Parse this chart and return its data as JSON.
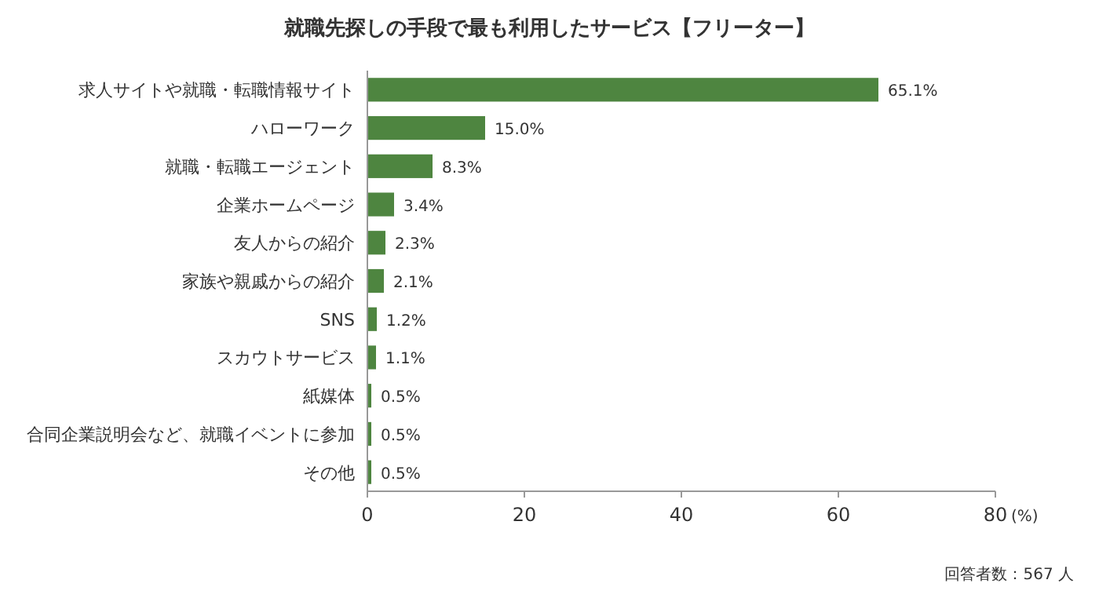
{
  "chart_data": {
    "type": "bar",
    "orientation": "horizontal",
    "title": "就職先探しの手段で最も利用したサービス【フリーター】",
    "categories": [
      "求人サイトや就職・転職情報サイト",
      "ハローワーク",
      "就職・転職エージェント",
      "企業ホームページ",
      "友人からの紹介",
      "家族や親戚からの紹介",
      "SNS",
      "スカウトサービス",
      "紙媒体",
      "合同企業説明会など、就職イベントに参加",
      "その他"
    ],
    "values": [
      65.1,
      15.0,
      8.3,
      3.4,
      2.3,
      2.1,
      1.2,
      1.1,
      0.5,
      0.5,
      0.5
    ],
    "value_labels": [
      "65.1%",
      "15.0%",
      "8.3%",
      "3.4%",
      "2.3%",
      "2.1%",
      "1.2%",
      "1.1%",
      "0.5%",
      "0.5%",
      "0.5%"
    ],
    "color": "#4e8540",
    "xlim": [
      0,
      80
    ],
    "xticks": [
      0,
      20,
      40,
      60,
      80
    ],
    "xlabel": "(%)",
    "annotations": [
      "回答者数：567 人"
    ]
  }
}
